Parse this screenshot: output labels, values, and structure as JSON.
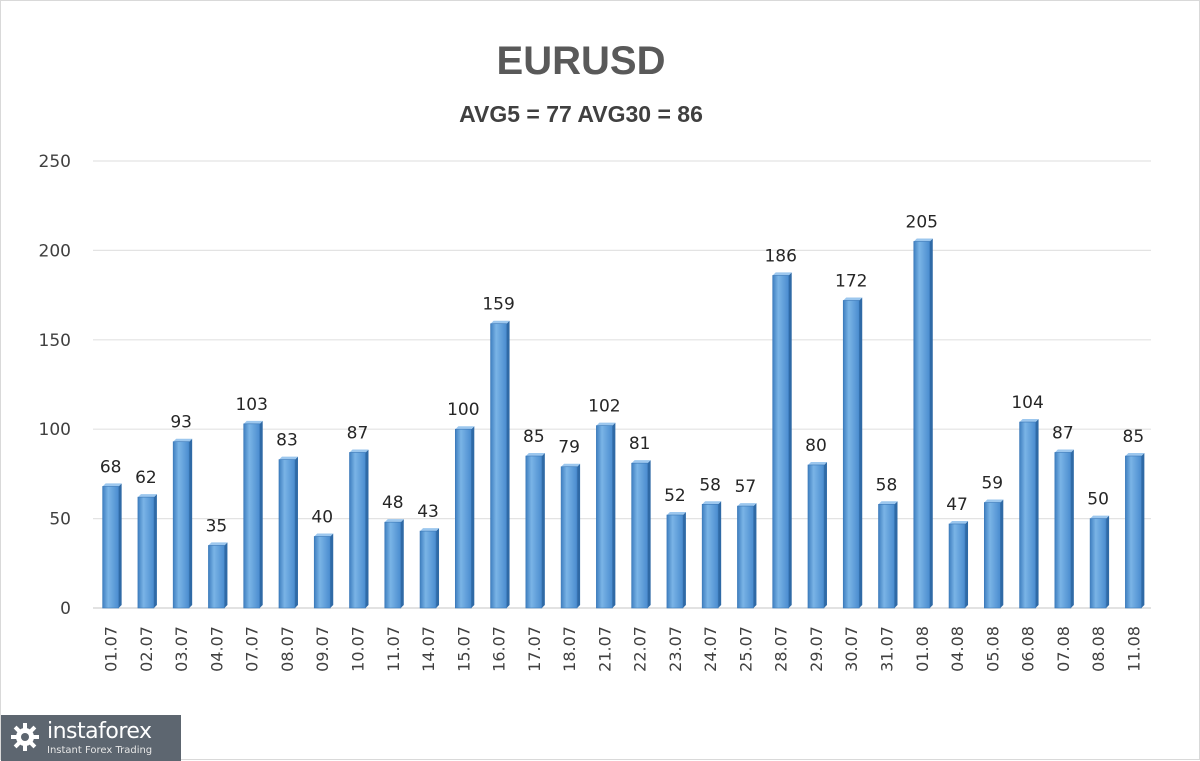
{
  "chart_data": {
    "type": "bar",
    "title": "EURUSD",
    "subtitle": "AVG5 = 77 AVG30 = 86",
    "categories": [
      "01.07",
      "02.07",
      "03.07",
      "04.07",
      "07.07",
      "08.07",
      "09.07",
      "10.07",
      "11.07",
      "14.07",
      "15.07",
      "16.07",
      "17.07",
      "18.07",
      "21.07",
      "22.07",
      "23.07",
      "24.07",
      "25.07",
      "28.07",
      "29.07",
      "30.07",
      "31.07",
      "01.08",
      "04.08",
      "05.08",
      "06.08",
      "07.08",
      "08.08",
      "11.08"
    ],
    "values": [
      68,
      62,
      93,
      35,
      103,
      83,
      40,
      87,
      48,
      43,
      100,
      159,
      85,
      79,
      102,
      81,
      52,
      58,
      57,
      186,
      80,
      172,
      58,
      205,
      47,
      59,
      104,
      87,
      50,
      85
    ],
    "ylim": [
      0,
      250
    ],
    "yticks": [
      0,
      50,
      100,
      150,
      200,
      250
    ],
    "grid": true,
    "legend": "none",
    "bar_color": "#5b9bd5"
  },
  "watermark": {
    "brand": "instaforex",
    "tagline": "Instant Forex Trading"
  }
}
